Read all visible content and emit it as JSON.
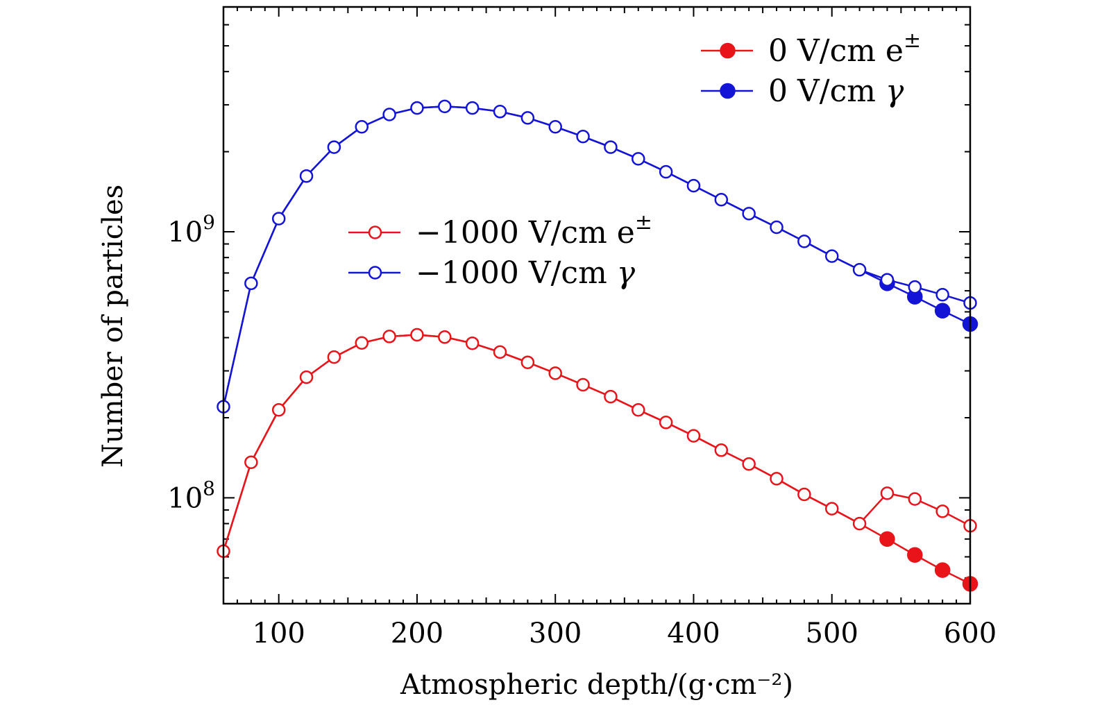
{
  "chart_data": {
    "type": "line",
    "title": "",
    "xlabel": "Atmospheric depth/(g·cm⁻²)",
    "ylabel": "Number of particles",
    "xlim": [
      60,
      600
    ],
    "ylim": [
      40000000,
      7000000000
    ],
    "yscale": "log",
    "x_ticks": [
      100,
      200,
      300,
      400,
      500,
      600
    ],
    "x_tick_labels": [
      "100",
      "200",
      "300",
      "400",
      "500",
      "600"
    ],
    "y_ticks": [
      100000000,
      1000000000
    ],
    "y_tick_labels": [
      {
        "base": "10",
        "exp": "8"
      },
      {
        "base": "10",
        "exp": "9"
      }
    ],
    "colors": {
      "red": "#e8141a",
      "blue": "#1414d6"
    },
    "legends": [
      {
        "position": "top-right",
        "entries": [
          {
            "label": "0 V/cm e",
            "sup": "±",
            "series_index": 0
          },
          {
            "label": "0 V/cm ",
            "italic": "γ",
            "series_index": 1
          }
        ]
      },
      {
        "position": "center",
        "entries": [
          {
            "label": "−1000 V/cm e",
            "sup": "±",
            "series_index": 2
          },
          {
            "label": "−1000 V/cm ",
            "italic": "γ",
            "series_index": 3
          }
        ]
      }
    ],
    "series": [
      {
        "name": "0 V/cm e±",
        "color": "red",
        "marker": "filled",
        "x": [
          60,
          80,
          100,
          120,
          140,
          160,
          180,
          200,
          220,
          240,
          260,
          280,
          300,
          320,
          340,
          360,
          380,
          400,
          420,
          440,
          460,
          480,
          500,
          520,
          540,
          560,
          580,
          600
        ],
        "values": [
          63000000,
          136000000,
          214000000,
          284000000,
          338000000,
          382000000,
          404000000,
          410000000,
          402000000,
          381000000,
          353000000,
          323000000,
          294000000,
          266000000,
          240000000,
          214000000,
          192000000,
          171000000,
          151000000,
          134000000,
          118000000,
          103000000,
          91000000,
          80000000,
          70000000,
          61000000,
          53500000,
          47500000
        ],
        "markers_shown_from": 540
      },
      {
        "name": "0 V/cm γ",
        "color": "blue",
        "marker": "filled",
        "x": [
          60,
          80,
          100,
          120,
          140,
          160,
          180,
          200,
          220,
          240,
          260,
          280,
          300,
          320,
          340,
          360,
          380,
          400,
          420,
          440,
          460,
          480,
          500,
          520,
          540,
          560,
          580,
          600
        ],
        "values": [
          220000000,
          640000000,
          1120000000,
          1620000000,
          2080000000,
          2480000000,
          2760000000,
          2920000000,
          2960000000,
          2920000000,
          2830000000,
          2680000000,
          2480000000,
          2280000000,
          2080000000,
          1880000000,
          1680000000,
          1490000000,
          1320000000,
          1170000000,
          1040000000,
          920000000,
          810000000,
          720000000,
          640000000,
          570000000,
          505000000,
          450000000
        ],
        "markers_shown_from": 540
      },
      {
        "name": "−1000 V/cm e±",
        "color": "red",
        "marker": "open",
        "x": [
          60,
          80,
          100,
          120,
          140,
          160,
          180,
          200,
          220,
          240,
          260,
          280,
          300,
          320,
          340,
          360,
          380,
          400,
          420,
          440,
          460,
          480,
          500,
          520,
          540,
          560,
          580,
          600
        ],
        "values": [
          63000000,
          136000000,
          214000000,
          284000000,
          338000000,
          382000000,
          404000000,
          410000000,
          402000000,
          381000000,
          353000000,
          323000000,
          294000000,
          266000000,
          240000000,
          214000000,
          192000000,
          171000000,
          151000000,
          134000000,
          118000000,
          103000000,
          91000000,
          80000000,
          104000000,
          99000000,
          89000000,
          78500000
        ]
      },
      {
        "name": "−1000 V/cm γ",
        "color": "blue",
        "marker": "open",
        "x": [
          60,
          80,
          100,
          120,
          140,
          160,
          180,
          200,
          220,
          240,
          260,
          280,
          300,
          320,
          340,
          360,
          380,
          400,
          420,
          440,
          460,
          480,
          500,
          520,
          540,
          560,
          580,
          600
        ],
        "values": [
          220000000,
          640000000,
          1120000000,
          1620000000,
          2080000000,
          2480000000,
          2760000000,
          2920000000,
          2960000000,
          2920000000,
          2830000000,
          2680000000,
          2480000000,
          2280000000,
          2080000000,
          1880000000,
          1680000000,
          1490000000,
          1320000000,
          1170000000,
          1040000000,
          920000000,
          810000000,
          720000000,
          660000000,
          620000000,
          580000000,
          540000000
        ]
      }
    ]
  }
}
